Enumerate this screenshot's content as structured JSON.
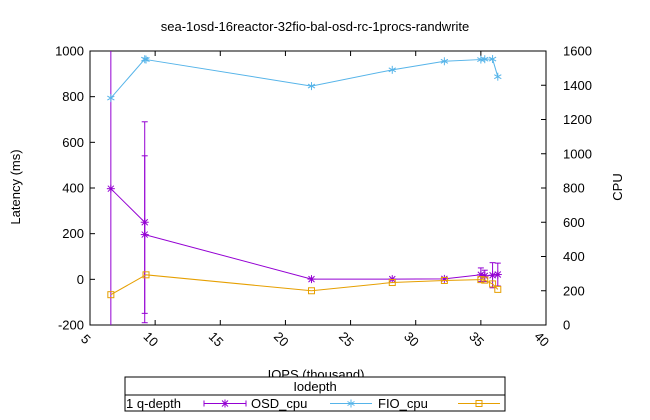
{
  "chart_data": {
    "type": "line",
    "title": "sea-1osd-16reactor-32fio-bal-osd-rc-1procs-randwrite",
    "xlabel": "IOPS (thousand)",
    "ylabel": "Latency (ms)",
    "y2label": "CPU",
    "xlim": [
      5,
      40
    ],
    "ylim": [
      -200,
      1000
    ],
    "y2lim": [
      0,
      1600
    ],
    "xticks": [
      "5",
      "10",
      "15",
      "20",
      "25",
      "30",
      "35",
      "40"
    ],
    "yticks": [
      "-200",
      "0",
      "200",
      "400",
      "600",
      "800",
      "1000"
    ],
    "y2ticks": [
      "0",
      "200",
      "400",
      "600",
      "800",
      "1000",
      "1200",
      "1400",
      "1600"
    ],
    "grid": false,
    "legend": {
      "title": "Iodepth",
      "placement": "bottom-center",
      "entries": [
        "1 q-depth",
        "OSD_cpu",
        "FIO_cpu"
      ]
    },
    "series": [
      {
        "name": "1 q-depth",
        "axis": "y",
        "color": "#9400d3",
        "marker": "star",
        "errorbars": true,
        "points": [
          {
            "x": 6.6,
            "y": 397,
            "err": 680
          },
          {
            "x": 9.2,
            "y": 250,
            "err": 440
          },
          {
            "x": 9.2,
            "y": 196,
            "err": 345
          },
          {
            "x": 22.0,
            "y": 1,
            "err": 0
          },
          {
            "x": 28.2,
            "y": 1,
            "err": 0
          },
          {
            "x": 32.2,
            "y": 2,
            "err": 0
          },
          {
            "x": 35.0,
            "y": 20,
            "err": 30
          },
          {
            "x": 35.3,
            "y": 15,
            "err": 25
          },
          {
            "x": 35.9,
            "y": 18,
            "err": 55
          },
          {
            "x": 36.3,
            "y": 21,
            "err": 50
          }
        ]
      },
      {
        "name": "OSD_cpu",
        "axis": "y2",
        "color": "#56b4e9",
        "marker": "asterisk",
        "points": [
          {
            "x": 6.6,
            "y": 1325
          },
          {
            "x": 9.2,
            "y": 1552
          },
          {
            "x": 9.3,
            "y": 1550
          },
          {
            "x": 22.0,
            "y": 1395
          },
          {
            "x": 28.2,
            "y": 1490
          },
          {
            "x": 32.2,
            "y": 1540
          },
          {
            "x": 35.0,
            "y": 1550
          },
          {
            "x": 35.3,
            "y": 1552
          },
          {
            "x": 35.9,
            "y": 1553
          },
          {
            "x": 36.3,
            "y": 1450
          }
        ]
      },
      {
        "name": "FIO_cpu",
        "axis": "y2",
        "color": "#e69f00",
        "marker": "square",
        "points": [
          {
            "x": 6.6,
            "y": 177
          },
          {
            "x": 9.3,
            "y": 293
          },
          {
            "x": 22.0,
            "y": 200
          },
          {
            "x": 28.2,
            "y": 248
          },
          {
            "x": 32.2,
            "y": 260
          },
          {
            "x": 35.0,
            "y": 265
          },
          {
            "x": 35.3,
            "y": 262
          },
          {
            "x": 35.9,
            "y": 240
          },
          {
            "x": 36.3,
            "y": 208
          }
        ]
      }
    ]
  }
}
